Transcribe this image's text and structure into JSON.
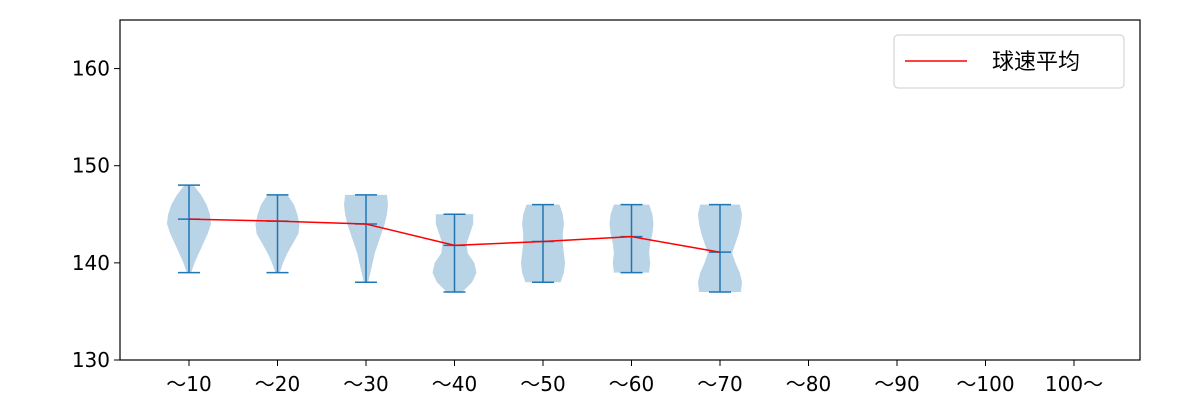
{
  "chart_data": {
    "type": "violin",
    "title": "",
    "xlabel": "",
    "ylabel": "",
    "ylim": [
      130,
      165
    ],
    "y_ticks": [
      130,
      140,
      150,
      160
    ],
    "categories": [
      "～10",
      "～20",
      "～30",
      "～40",
      "～50",
      "～60",
      "～70",
      "～80",
      "～90",
      "～100",
      "100～"
    ],
    "violins": [
      {
        "category": "～10",
        "min": 139,
        "max": 148,
        "mean": 144.5,
        "profile": [
          [
            139,
            0.1
          ],
          [
            140,
            0.25
          ],
          [
            141,
            0.45
          ],
          [
            142,
            0.65
          ],
          [
            143,
            0.85
          ],
          [
            144,
            1.0
          ],
          [
            145,
            0.95
          ],
          [
            146,
            0.8
          ],
          [
            147,
            0.55
          ],
          [
            148,
            0.2
          ]
        ]
      },
      {
        "category": "～20",
        "min": 139,
        "max": 147,
        "mean": 144.3,
        "profile": [
          [
            139,
            0.1
          ],
          [
            140,
            0.25
          ],
          [
            141,
            0.45
          ],
          [
            142,
            0.7
          ],
          [
            143,
            0.95
          ],
          [
            144,
            1.0
          ],
          [
            145,
            0.9
          ],
          [
            146,
            0.75
          ],
          [
            147,
            0.45
          ]
        ]
      },
      {
        "category": "～30",
        "min": 138,
        "max": 147,
        "mean": 144.0,
        "profile": [
          [
            138,
            0.1
          ],
          [
            139,
            0.2
          ],
          [
            140,
            0.3
          ],
          [
            141,
            0.4
          ],
          [
            142,
            0.55
          ],
          [
            143,
            0.7
          ],
          [
            144,
            0.85
          ],
          [
            145,
            0.95
          ],
          [
            146,
            1.0
          ],
          [
            147,
            0.95
          ]
        ]
      },
      {
        "category": "～40",
        "min": 137,
        "max": 145,
        "mean": 141.8,
        "profile": [
          [
            137,
            0.35
          ],
          [
            138,
            0.8
          ],
          [
            139,
            1.0
          ],
          [
            140,
            0.9
          ],
          [
            141,
            0.6
          ],
          [
            142,
            0.55
          ],
          [
            143,
            0.7
          ],
          [
            144,
            0.85
          ],
          [
            145,
            0.85
          ]
        ]
      },
      {
        "category": "～50",
        "min": 138,
        "max": 146,
        "mean": 142.2,
        "profile": [
          [
            138,
            0.8
          ],
          [
            139,
            0.95
          ],
          [
            140,
            1.0
          ],
          [
            141,
            0.95
          ],
          [
            142,
            0.9
          ],
          [
            143,
            0.9
          ],
          [
            144,
            0.95
          ],
          [
            145,
            0.9
          ],
          [
            146,
            0.75
          ]
        ]
      },
      {
        "category": "～60",
        "min": 139,
        "max": 146,
        "mean": 142.7,
        "profile": [
          [
            139,
            0.8
          ],
          [
            140,
            0.85
          ],
          [
            141,
            0.8
          ],
          [
            142,
            0.85
          ],
          [
            143,
            0.95
          ],
          [
            144,
            1.0
          ],
          [
            145,
            0.95
          ],
          [
            146,
            0.8
          ]
        ]
      },
      {
        "category": "～70",
        "min": 137,
        "max": 146,
        "mean": 141.1,
        "profile": [
          [
            137,
            0.95
          ],
          [
            138,
            1.0
          ],
          [
            139,
            0.9
          ],
          [
            140,
            0.7
          ],
          [
            141,
            0.55
          ],
          [
            142,
            0.7
          ],
          [
            143,
            0.85
          ],
          [
            144,
            0.95
          ],
          [
            145,
            1.0
          ],
          [
            146,
            0.9
          ]
        ]
      }
    ],
    "series": [
      {
        "name": "球速平均",
        "type": "line",
        "color": "#ff0000",
        "x": [
          "～10",
          "～20",
          "～30",
          "～40",
          "～50",
          "～60",
          "～70"
        ],
        "values": [
          144.5,
          144.3,
          144.0,
          141.8,
          142.2,
          142.7,
          141.1
        ]
      }
    ],
    "violin_fill_color": "#a7c8e1",
    "violin_line_color": "#1f77b4",
    "legend_position": "top-right",
    "grid": false
  }
}
